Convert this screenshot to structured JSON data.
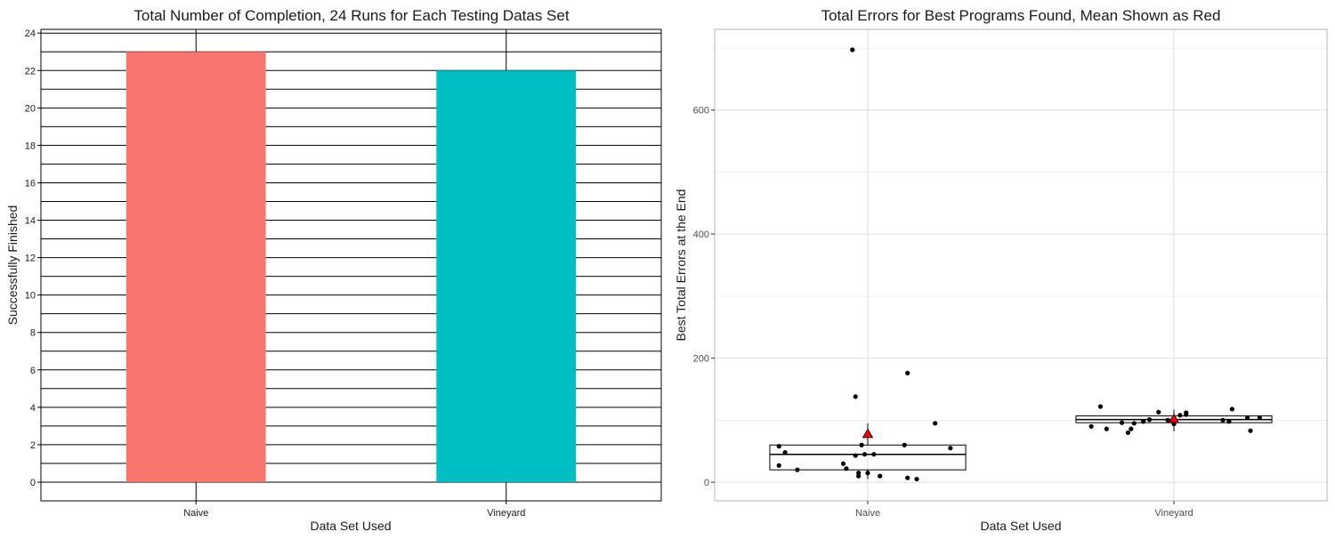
{
  "chart_data": [
    {
      "type": "bar",
      "title": "Total Number of Completion, 24 Runs for Each Testing Datas Set",
      "xlabel": "Data Set Used",
      "ylabel": "Successfully Finished",
      "categories": [
        "Naive",
        "Vineyard"
      ],
      "values": [
        23,
        22
      ],
      "colors": [
        "#F8766D",
        "#00BFC4"
      ],
      "ylim": [
        -1,
        24.2
      ],
      "yticks": [
        0,
        2,
        4,
        6,
        8,
        10,
        12,
        14,
        16,
        18,
        20,
        22,
        24
      ],
      "grid": true
    },
    {
      "type": "scatter",
      "title": "Total Errors for Best Programs Found, Mean Shown as Red",
      "xlabel": "Data Set Used",
      "ylabel": "Best Total Errors at the End",
      "categories": [
        "Naive",
        "Vineyard"
      ],
      "ylim": [
        -30,
        730
      ],
      "yticks": [
        0,
        200,
        400,
        600
      ],
      "grid": true,
      "mean_color": "#FF0000",
      "boxes": [
        {
          "category": "Naive",
          "q1": 20,
          "median": 45,
          "q3": 60,
          "whisker_low": 5,
          "whisker_high": 95,
          "mean": 78
        },
        {
          "category": "Vineyard",
          "q1": 96,
          "median": 101,
          "q3": 107,
          "whisker_low": 82,
          "whisker_high": 117,
          "mean": 102
        }
      ],
      "points": [
        {
          "category": "Naive",
          "jitter": -0.29,
          "y": 58
        },
        {
          "category": "Naive",
          "jitter": -0.27,
          "y": 48
        },
        {
          "category": "Naive",
          "jitter": -0.29,
          "y": 27
        },
        {
          "category": "Naive",
          "jitter": -0.23,
          "y": 20
        },
        {
          "category": "Naive",
          "jitter": -0.05,
          "y": 697
        },
        {
          "category": "Naive",
          "jitter": -0.08,
          "y": 30
        },
        {
          "category": "Naive",
          "jitter": -0.07,
          "y": 22
        },
        {
          "category": "Naive",
          "jitter": -0.04,
          "y": 138
        },
        {
          "category": "Naive",
          "jitter": -0.04,
          "y": 43
        },
        {
          "category": "Naive",
          "jitter": -0.03,
          "y": 15
        },
        {
          "category": "Naive",
          "jitter": -0.02,
          "y": 60
        },
        {
          "category": "Naive",
          "jitter": 0.0,
          "y": 15
        },
        {
          "category": "Naive",
          "jitter": -0.03,
          "y": 10
        },
        {
          "category": "Naive",
          "jitter": -0.01,
          "y": 45
        },
        {
          "category": "Naive",
          "jitter": 0.02,
          "y": 45
        },
        {
          "category": "Naive",
          "jitter": 0.04,
          "y": 10
        },
        {
          "category": "Naive",
          "jitter": 0.12,
          "y": 60
        },
        {
          "category": "Naive",
          "jitter": 0.13,
          "y": 176
        },
        {
          "category": "Naive",
          "jitter": 0.13,
          "y": 7
        },
        {
          "category": "Naive",
          "jitter": 0.16,
          "y": 5
        },
        {
          "category": "Naive",
          "jitter": 0.22,
          "y": 95
        },
        {
          "category": "Naive",
          "jitter": 0.27,
          "y": 55
        },
        {
          "category": "Vineyard",
          "jitter": -0.27,
          "y": 90
        },
        {
          "category": "Vineyard",
          "jitter": -0.24,
          "y": 122
        },
        {
          "category": "Vineyard",
          "jitter": -0.22,
          "y": 86
        },
        {
          "category": "Vineyard",
          "jitter": -0.17,
          "y": 96
        },
        {
          "category": "Vineyard",
          "jitter": -0.15,
          "y": 80
        },
        {
          "category": "Vineyard",
          "jitter": -0.14,
          "y": 86
        },
        {
          "category": "Vineyard",
          "jitter": -0.13,
          "y": 95
        },
        {
          "category": "Vineyard",
          "jitter": -0.1,
          "y": 98
        },
        {
          "category": "Vineyard",
          "jitter": -0.08,
          "y": 101
        },
        {
          "category": "Vineyard",
          "jitter": -0.05,
          "y": 113
        },
        {
          "category": "Vineyard",
          "jitter": -0.02,
          "y": 100
        },
        {
          "category": "Vineyard",
          "jitter": 0.0,
          "y": 94
        },
        {
          "category": "Vineyard",
          "jitter": 0.02,
          "y": 108
        },
        {
          "category": "Vineyard",
          "jitter": 0.04,
          "y": 112
        },
        {
          "category": "Vineyard",
          "jitter": 0.04,
          "y": 109
        },
        {
          "category": "Vineyard",
          "jitter": 0.16,
          "y": 100
        },
        {
          "category": "Vineyard",
          "jitter": 0.18,
          "y": 98
        },
        {
          "category": "Vineyard",
          "jitter": 0.19,
          "y": 118
        },
        {
          "category": "Vineyard",
          "jitter": 0.24,
          "y": 104
        },
        {
          "category": "Vineyard",
          "jitter": 0.25,
          "y": 83
        },
        {
          "category": "Vineyard",
          "jitter": 0.28,
          "y": 104
        }
      ]
    }
  ]
}
